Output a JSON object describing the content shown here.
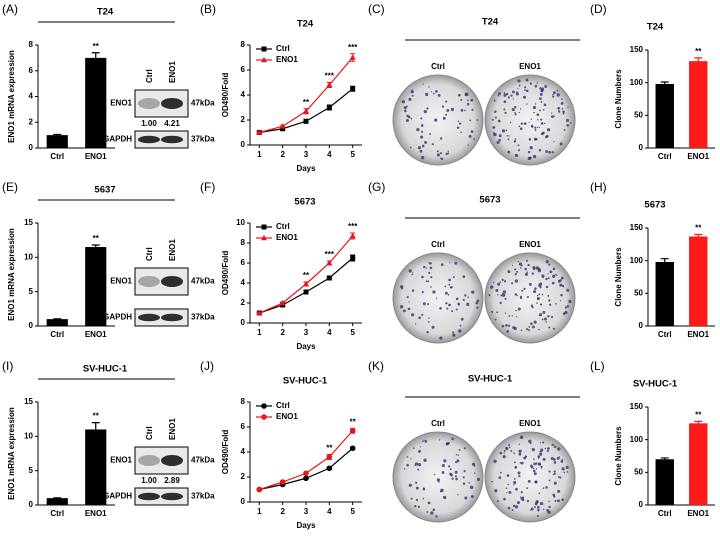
{
  "chart_data": [
    {
      "panel": "(A)",
      "type": "bar",
      "title": "T24",
      "ylabel": "ENO1 mRNA expression",
      "categories": [
        "Ctrl",
        "ENO1"
      ],
      "values": [
        1,
        7
      ],
      "errors": [
        0.05,
        0.4
      ],
      "colors": [
        "#000000",
        "#000000"
      ],
      "value_annotations": [
        null,
        "**"
      ],
      "ylim": [
        0,
        8
      ],
      "yticks": [
        0,
        2,
        4,
        6,
        8
      ]
    },
    {
      "panel": "(B)",
      "type": "line",
      "title": "T24",
      "xlabel": "Days",
      "ylabel": "OD490/Fold",
      "x": [
        1,
        2,
        3,
        4,
        5
      ],
      "xlim": [
        0.6,
        5.4
      ],
      "xticks": [
        1,
        2,
        3,
        4,
        5
      ],
      "ylim": [
        0,
        8
      ],
      "yticks": [
        0,
        2,
        4,
        6,
        8
      ],
      "legend": "upper left",
      "series": [
        {
          "name": "Ctrl",
          "color": "#000000",
          "marker": "square",
          "values": [
            1,
            1.3,
            1.9,
            3,
            4.5
          ],
          "errors": [
            0.05,
            0.1,
            0.15,
            0.2,
            0.2
          ]
        },
        {
          "name": "ENO1",
          "color": "#e8161b",
          "marker": "triangle",
          "values": [
            1,
            1.5,
            2.7,
            4.8,
            7
          ],
          "errors": [
            0.05,
            0.1,
            0.2,
            0.2,
            0.3
          ]
        }
      ],
      "annotations": [
        {
          "x": 3,
          "text": "**"
        },
        {
          "x": 4,
          "text": "***"
        },
        {
          "x": 5,
          "text": "***"
        }
      ]
    },
    {
      "panel": "(D)",
      "type": "bar",
      "title": "T24",
      "ylabel": "Clone Numbers",
      "categories": [
        "Ctrl",
        "ENO1"
      ],
      "values": [
        98,
        133
      ],
      "errors": [
        3,
        5
      ],
      "colors": [
        "#000000",
        "#ff1a1a"
      ],
      "value_annotations": [
        null,
        "**"
      ],
      "ylim": [
        0,
        150
      ],
      "yticks": [
        0,
        50,
        100,
        150
      ]
    },
    {
      "panel": "(E)",
      "type": "bar",
      "title": "5637",
      "ylabel": "ENO1 mRNA expression",
      "categories": [
        "Ctrl",
        "ENO1"
      ],
      "values": [
        1,
        11.5
      ],
      "errors": [
        0.05,
        0.3
      ],
      "colors": [
        "#000000",
        "#000000"
      ],
      "value_annotations": [
        null,
        "**"
      ],
      "ylim": [
        0,
        15
      ],
      "yticks": [
        0,
        5,
        10,
        15
      ]
    },
    {
      "panel": "(F)",
      "type": "line",
      "title": "5673",
      "xlabel": "Days",
      "ylabel": "OD490/Fold",
      "x": [
        1,
        2,
        3,
        4,
        5
      ],
      "xlim": [
        0.6,
        5.4
      ],
      "xticks": [
        1,
        2,
        3,
        4,
        5
      ],
      "ylim": [
        0,
        10
      ],
      "yticks": [
        0,
        2,
        4,
        6,
        8,
        10
      ],
      "legend": "upper left",
      "series": [
        {
          "name": "Ctrl",
          "color": "#000000",
          "marker": "square",
          "values": [
            1,
            1.8,
            3.1,
            4.5,
            6.5
          ],
          "errors": [
            0.05,
            0.1,
            0.15,
            0.2,
            0.3
          ]
        },
        {
          "name": "ENO1",
          "color": "#e8161b",
          "marker": "triangle",
          "values": [
            1,
            2,
            3.9,
            6,
            8.7
          ],
          "errors": [
            0.05,
            0.1,
            0.2,
            0.2,
            0.3
          ]
        }
      ],
      "annotations": [
        {
          "x": 3,
          "text": "**"
        },
        {
          "x": 4,
          "text": "***"
        },
        {
          "x": 5,
          "text": "***"
        }
      ]
    },
    {
      "panel": "(H)",
      "type": "bar",
      "title": "5673",
      "ylabel": "Clone Numbers",
      "categories": [
        "Ctrl",
        "ENO1"
      ],
      "values": [
        98,
        137
      ],
      "errors": [
        5,
        3
      ],
      "colors": [
        "#000000",
        "#ff1a1a"
      ],
      "value_annotations": [
        null,
        "**"
      ],
      "ylim": [
        0,
        150
      ],
      "yticks": [
        0,
        50,
        100,
        150
      ]
    },
    {
      "panel": "(I)",
      "type": "bar",
      "title": "SV-HUC-1",
      "ylabel": "ENO1 mRNA expression",
      "categories": [
        "Ctrl",
        "ENO1"
      ],
      "values": [
        1,
        11
      ],
      "errors": [
        0.05,
        1
      ],
      "colors": [
        "#000000",
        "#000000"
      ],
      "value_annotations": [
        null,
        "**"
      ],
      "ylim": [
        0,
        15
      ],
      "yticks": [
        0,
        5,
        10,
        15
      ]
    },
    {
      "panel": "(J)",
      "type": "line",
      "title": "SV-HUC-1",
      "xlabel": "Days",
      "ylabel": "OD490/Fold",
      "x": [
        1,
        2,
        3,
        4,
        5
      ],
      "xlim": [
        0.6,
        5.4
      ],
      "xticks": [
        1,
        2,
        3,
        4,
        5
      ],
      "ylim": [
        0,
        8
      ],
      "yticks": [
        0,
        2,
        4,
        6,
        8
      ],
      "legend": "upper left",
      "series": [
        {
          "name": "Ctrl",
          "color": "#000000",
          "marker": "circle",
          "values": [
            1,
            1.4,
            1.9,
            2.7,
            4.3
          ],
          "errors": [
            0.05,
            0.05,
            0.1,
            0.1,
            0.1
          ]
        },
        {
          "name": "ENO1",
          "color": "#e8161b",
          "marker": "circle",
          "values": [
            1,
            1.6,
            2.3,
            3.6,
            5.7
          ],
          "errors": [
            0.05,
            0.1,
            0.1,
            0.2,
            0.2
          ]
        }
      ],
      "annotations": [
        {
          "x": 4,
          "text": "**"
        },
        {
          "x": 5,
          "text": "**"
        }
      ]
    },
    {
      "panel": "(L)",
      "type": "bar",
      "title": "SV-HUC-1",
      "ylabel": "Clone Numbers",
      "categories": [
        "Ctrl",
        "ENO1"
      ],
      "values": [
        70,
        125
      ],
      "errors": [
        2,
        3
      ],
      "colors": [
        "#000000",
        "#ff1a1a"
      ],
      "value_annotations": [
        null,
        "**"
      ],
      "ylim": [
        0,
        150
      ],
      "yticks": [
        0,
        50,
        100,
        150
      ]
    }
  ],
  "blots": [
    {
      "lanes": [
        "Ctrl",
        "ENO1"
      ],
      "rows": [
        {
          "protein": "ENO1",
          "size": "47kDa"
        },
        {
          "protein": "GAPDH",
          "size": "37kDa"
        }
      ],
      "quantification": [
        "1.00",
        "4.21"
      ]
    },
    {
      "lanes": [
        "Ctrl",
        "ENO1"
      ],
      "rows": [
        {
          "protein": "ENO1",
          "size": "47kDa"
        },
        {
          "protein": "GAPDH",
          "size": "37kDa"
        }
      ]
    },
    {
      "lanes": [
        "Ctrl",
        "ENO1"
      ],
      "rows": [
        {
          "protein": "ENO1",
          "size": "47kDa"
        },
        {
          "protein": "GAPDH",
          "size": "37kDa"
        }
      ],
      "quantification": [
        "1.00",
        "2.89"
      ]
    }
  ],
  "plates": [
    {
      "panel": "(C)",
      "title": "T24",
      "labels": [
        "Ctrl",
        "ENO1"
      ]
    },
    {
      "panel": "(G)",
      "title": "5673",
      "labels": [
        "Ctrl",
        "ENO1"
      ]
    },
    {
      "panel": "(K)",
      "title": "SV-HUC-1",
      "labels": [
        "Ctrl",
        "ENO1"
      ]
    }
  ]
}
